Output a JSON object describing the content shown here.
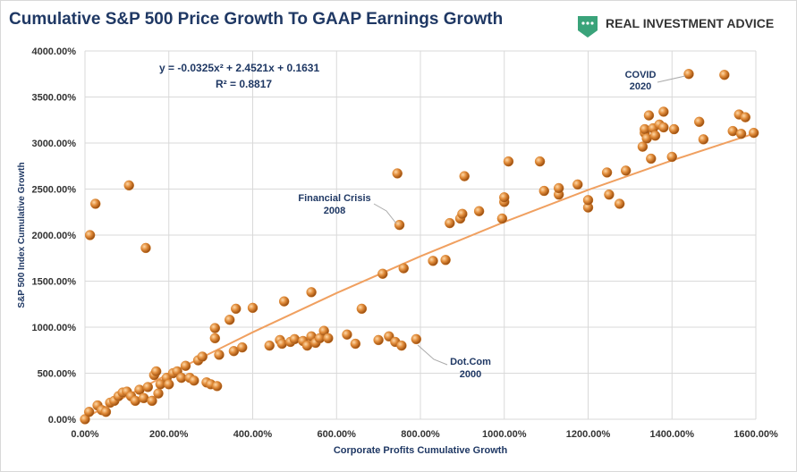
{
  "logo": "REAL INVESTMENT ADVICE",
  "chart_data": {
    "type": "scatter",
    "title": "Cumulative S&P 500 Price Growth To GAAP Earnings Growth",
    "x_label": "Corporate Profits Cumulative Growth",
    "y_label": "S&P 500 Index Cumulative Growth",
    "equation": "y = -0.0325x² + 2.4521x + 0.1631",
    "r_squared": "R² = 0.8817",
    "annotations": [
      [
        "COVID",
        "2020"
      ],
      [
        "Financial Crisis",
        "2008"
      ],
      [
        "Dot.Com",
        "2000"
      ]
    ],
    "grid": true,
    "xlim": [
      0,
      1600
    ],
    "ylim": [
      0,
      4000
    ],
    "xticks": [
      {
        "value": 0,
        "label": "0.00%"
      },
      {
        "value": 200,
        "label": "200.00%"
      },
      {
        "value": 400,
        "label": "400.00%"
      },
      {
        "value": 600,
        "label": "600.00%"
      },
      {
        "value": 800,
        "label": "800.00%"
      },
      {
        "value": 1000,
        "label": "1000.00%"
      },
      {
        "value": 1200,
        "label": "1200.00%"
      },
      {
        "value": 1400,
        "label": "1400.00%"
      },
      {
        "value": 1600,
        "label": "1600.00%"
      }
    ],
    "yticks": [
      {
        "value": 0,
        "label": "0.00%"
      },
      {
        "value": 500,
        "label": "500.00%"
      },
      {
        "value": 1000,
        "label": "1000.00%"
      },
      {
        "value": 1500,
        "label": "1500.00%"
      },
      {
        "value": 2000,
        "label": "2000.00%"
      },
      {
        "value": 2500,
        "label": "2500.00%"
      },
      {
        "value": 3000,
        "label": "3000.00%"
      },
      {
        "value": 3500,
        "label": "3500.00%"
      },
      {
        "value": 4000,
        "label": "4000.00%"
      }
    ],
    "series": [
      {
        "color": "#d9822b",
        "x": [
          0,
          10,
          12,
          25,
          30,
          40,
          50,
          60,
          70,
          80,
          90,
          100,
          105,
          110,
          120,
          130,
          140,
          145,
          150,
          160,
          165,
          170,
          175,
          180,
          195,
          200,
          210,
          220,
          230,
          240,
          250,
          260,
          270,
          280,
          290,
          300,
          310,
          310,
          315,
          320,
          345,
          355,
          360,
          375,
          400,
          440,
          465,
          470,
          475,
          490,
          500,
          520,
          530,
          540,
          540,
          550,
          560,
          570,
          580,
          625,
          645,
          660,
          700,
          710,
          725,
          740,
          745,
          750,
          755,
          760,
          790,
          830,
          860,
          870,
          895,
          900,
          905,
          940,
          995,
          1000,
          1000,
          1010,
          1085,
          1095,
          1130,
          1130,
          1175,
          1200,
          1200,
          1245,
          1250,
          1275,
          1290,
          1330,
          1335,
          1335,
          1340,
          1345,
          1350,
          1355,
          1360,
          1370,
          1380,
          1380,
          1400,
          1405,
          1440,
          1465,
          1475,
          1525,
          1545,
          1560,
          1565,
          1575,
          1595
        ],
        "values": [
          0,
          80,
          2000,
          2340,
          150,
          100,
          80,
          180,
          200,
          250,
          290,
          300,
          2540,
          250,
          200,
          320,
          230,
          1860,
          350,
          200,
          480,
          520,
          280,
          380,
          450,
          380,
          500,
          520,
          450,
          580,
          450,
          420,
          640,
          680,
          400,
          380,
          880,
          990,
          360,
          700,
          1080,
          740,
          1200,
          780,
          1210,
          800,
          860,
          820,
          1280,
          840,
          870,
          850,
          800,
          900,
          1380,
          830,
          880,
          960,
          880,
          920,
          820,
          1200,
          860,
          1580,
          900,
          840,
          2670,
          2110,
          800,
          1640,
          870,
          1720,
          1730,
          2130,
          2180,
          2230,
          2640,
          2260,
          2180,
          2360,
          2410,
          2800,
          2800,
          2480,
          2440,
          2510,
          2550,
          2300,
          2380,
          2680,
          2440,
          2340,
          2700,
          2960,
          3110,
          3150,
          3050,
          3300,
          2830,
          3160,
          3080,
          3200,
          3340,
          3170,
          2850,
          3150,
          3750,
          3230,
          3040,
          3740,
          3130,
          3310,
          3100,
          3280,
          3110
        ]
      },
      {
        "color": "#f0a060",
        "x": [
          0,
          200,
          400,
          600,
          800,
          1000,
          1200,
          1400,
          1590
        ],
        "values": [
          16,
          494,
          945,
          1371,
          1770,
          2143,
          2491,
          2812,
          3094
        ]
      }
    ]
  }
}
